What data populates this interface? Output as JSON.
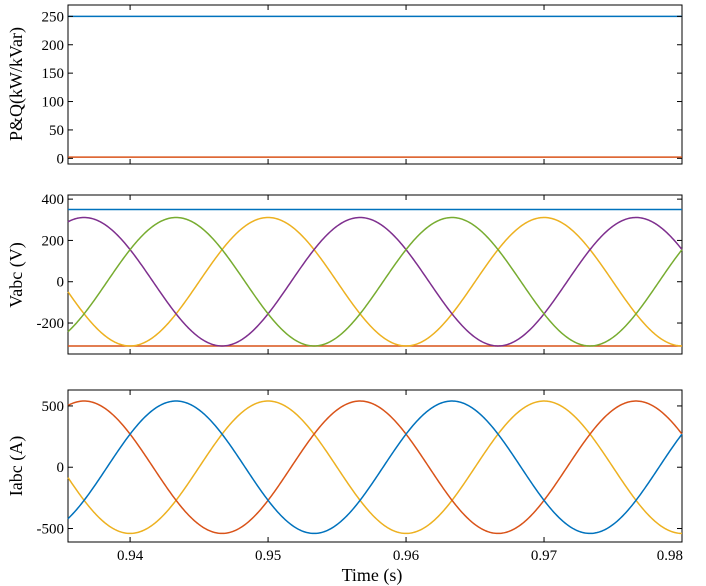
{
  "chart_data": [
    {
      "type": "line",
      "ylabel": "P&Q(kW/kVar)",
      "xlabel": "",
      "xlim": [
        0.9355,
        0.98
      ],
      "ylim": [
        -10,
        270
      ],
      "yticks": [
        0,
        50,
        100,
        150,
        200,
        250
      ],
      "ytick_labels": [
        "0",
        "50",
        "100",
        "150",
        "200",
        "250"
      ],
      "xticks": [
        0.94,
        0.95,
        0.96,
        0.97,
        0.98
      ],
      "xtick_labels": [],
      "series": [
        {
          "kind": "constant",
          "value": 250,
          "color": "#0072BD"
        },
        {
          "kind": "constant",
          "value": 2,
          "color": "#D95319"
        }
      ]
    },
    {
      "type": "line",
      "ylabel": "Vabc (V)",
      "xlabel": "",
      "xlim": [
        0.9355,
        0.98
      ],
      "ylim": [
        -350,
        420
      ],
      "yticks": [
        -200,
        0,
        200,
        400
      ],
      "ytick_labels": [
        "-200",
        "0",
        "200",
        "400"
      ],
      "xticks": [
        0.94,
        0.95,
        0.96,
        0.97,
        0.98
      ],
      "xtick_labels": [],
      "series": [
        {
          "kind": "constant",
          "value": 350,
          "color": "#0072BD"
        },
        {
          "kind": "constant",
          "value": -311,
          "color": "#D95319"
        },
        {
          "kind": "sine",
          "amplitude": 311,
          "frequency": 50,
          "phase_deg": -90,
          "color": "#EDB120"
        },
        {
          "kind": "sine",
          "amplitude": 311,
          "frequency": 50,
          "phase_deg": 150,
          "color": "#7E2F8E"
        },
        {
          "kind": "sine",
          "amplitude": 311,
          "frequency": 50,
          "phase_deg": 30,
          "color": "#77AC30"
        }
      ]
    },
    {
      "type": "line",
      "ylabel": "Iabc (A)",
      "xlabel": "Time (s)",
      "xlim": [
        0.9355,
        0.98
      ],
      "ylim": [
        -610,
        630
      ],
      "yticks": [
        -500,
        0,
        500
      ],
      "ytick_labels": [
        "-500",
        "0",
        "500"
      ],
      "xticks": [
        0.94,
        0.95,
        0.96,
        0.97,
        0.98
      ],
      "xtick_labels": [
        "0.94",
        "0.95",
        "0.96",
        "0.97",
        "0.98"
      ],
      "series": [
        {
          "kind": "sine",
          "amplitude": 540,
          "frequency": 50,
          "phase_deg": -90,
          "color": "#EDB120"
        },
        {
          "kind": "sine",
          "amplitude": 540,
          "frequency": 50,
          "phase_deg": 150,
          "color": "#D95319"
        },
        {
          "kind": "sine",
          "amplitude": 540,
          "frequency": 50,
          "phase_deg": 30,
          "color": "#0072BD"
        }
      ]
    }
  ]
}
